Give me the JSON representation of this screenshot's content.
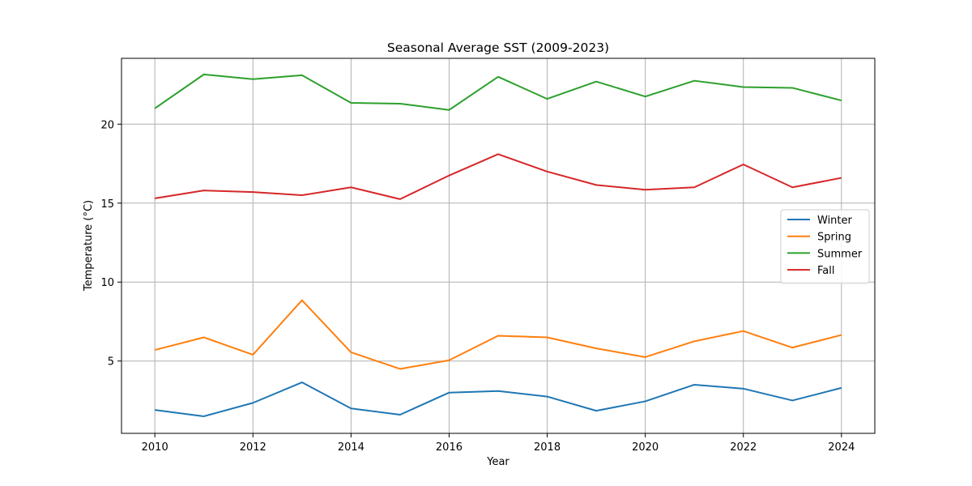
{
  "chart_data": {
    "type": "line",
    "title": "Seasonal Average SST (2009-2023)",
    "xlabel": "Year",
    "ylabel": "Temperature (°C)",
    "xlim": [
      2009.32,
      2024.68
    ],
    "ylim": [
      0.42,
      24.17
    ],
    "xticks": [
      2010,
      2012,
      2014,
      2016,
      2018,
      2020,
      2022,
      2024
    ],
    "yticks": [
      5,
      10,
      15,
      20
    ],
    "grid": true,
    "legend_position": "center-right",
    "x": [
      2010,
      2011,
      2012,
      2013,
      2014,
      2015,
      2016,
      2017,
      2018,
      2019,
      2020,
      2021,
      2022,
      2023,
      2024
    ],
    "series": [
      {
        "name": "Winter",
        "color": "#1f77b4",
        "values": [
          1.9,
          1.5,
          2.35,
          3.65,
          2.0,
          1.6,
          3.0,
          3.1,
          2.75,
          1.85,
          2.45,
          3.5,
          3.25,
          2.5,
          3.3
        ]
      },
      {
        "name": "Spring",
        "color": "#ff7f0e",
        "values": [
          5.7,
          6.5,
          5.4,
          8.85,
          5.55,
          4.5,
          5.05,
          6.6,
          6.5,
          5.8,
          5.25,
          6.25,
          6.9,
          5.85,
          6.65
        ]
      },
      {
        "name": "Summer",
        "color": "#2ca02c",
        "values": [
          21.0,
          23.15,
          22.85,
          23.1,
          21.35,
          21.3,
          20.9,
          23.0,
          21.6,
          22.7,
          21.75,
          22.75,
          22.35,
          22.3,
          21.5
        ]
      },
      {
        "name": "Fall",
        "color": "#d62728",
        "values": [
          15.3,
          15.8,
          15.7,
          15.5,
          16.0,
          15.25,
          16.75,
          18.1,
          17.0,
          16.15,
          15.85,
          16.0,
          17.45,
          16.0,
          16.6
        ]
      }
    ]
  }
}
